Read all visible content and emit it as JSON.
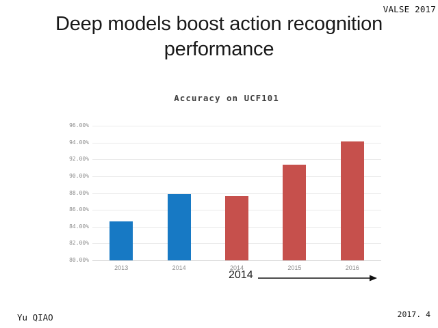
{
  "slide": {
    "conference_badge": "VALSE 2017",
    "title": "Deep models boost action recognition performance",
    "author": "Yu QIAO",
    "date": "2017. 4",
    "annotation": {
      "year": "2014"
    }
  },
  "chart_data": {
    "type": "bar",
    "title": "Accuracy on UCF101",
    "categories": [
      "2013",
      "2014",
      "2014",
      "2015",
      "2016"
    ],
    "values": [
      84.6,
      87.9,
      87.6,
      91.4,
      94.1
    ],
    "bar_colors": [
      "#1779C4",
      "#1779C4",
      "#C6504C",
      "#C6504C",
      "#C6504C"
    ],
    "xlabel": "",
    "ylabel": "",
    "ylim": [
      80,
      96
    ],
    "ytick_labels": [
      "80.00%",
      "82.00%",
      "84.00%",
      "86.00%",
      "88.00%",
      "90.00%",
      "92.00%",
      "94.00%",
      "96.00%"
    ],
    "grid": true,
    "legend_position": "none",
    "accent_colors": {
      "handcrafted_blue": "#1779C4",
      "deep_model_red": "#C6504C",
      "grid_gray": "#e9e9e9"
    }
  }
}
